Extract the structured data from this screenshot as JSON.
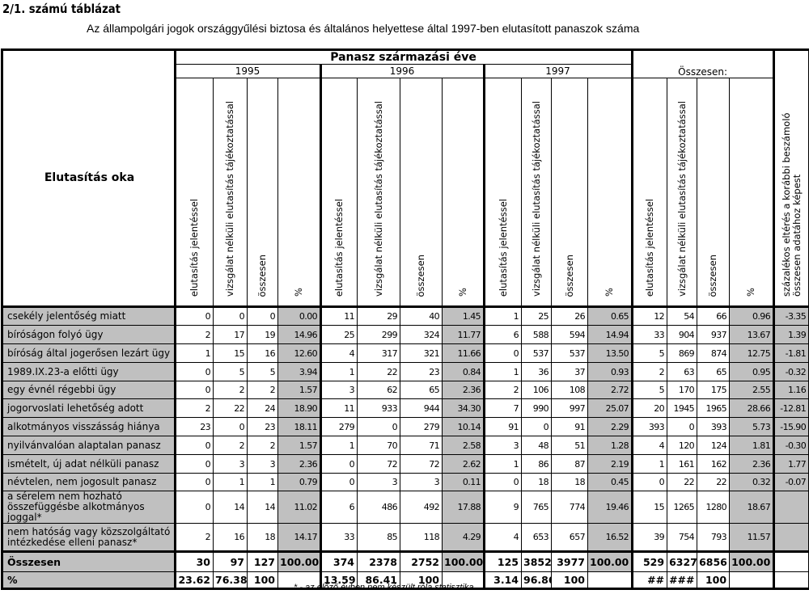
{
  "heading": "2/1. számú táblázat",
  "title": "Az állampolgári jogok országgyűlési biztosa és általános helyettese által 1997-ben elutasított panaszok száma",
  "header": {
    "row_label": "Elutasítás oka",
    "group": "Panasz származási éve",
    "years": [
      "1995",
      "1996",
      "1997"
    ],
    "total": "Összesen:",
    "subcols": [
      "elutasítás jelentéssel",
      "vizsgálat nélküli elutasítás tájékoztatással",
      "összesen",
      "%"
    ],
    "last": "százalékos eltérés a korábbi beszámoló összesen adatához képest"
  },
  "rows": [
    {
      "label": "csekély jelentőség miatt",
      "v": [
        "0",
        "0",
        "0",
        "0.00",
        "11",
        "29",
        "40",
        "1.45",
        "1",
        "25",
        "26",
        "0.65",
        "12",
        "54",
        "66",
        "0.96",
        "-3.35"
      ]
    },
    {
      "label": "bíróságon folyó ügy",
      "v": [
        "2",
        "17",
        "19",
        "14.96",
        "25",
        "299",
        "324",
        "11.77",
        "6",
        "588",
        "594",
        "14.94",
        "33",
        "904",
        "937",
        "13.67",
        "1.39"
      ]
    },
    {
      "label": "bíróság által jogerősen lezárt ügy",
      "v": [
        "1",
        "15",
        "16",
        "12.60",
        "4",
        "317",
        "321",
        "11.66",
        "0",
        "537",
        "537",
        "13.50",
        "5",
        "869",
        "874",
        "12.75",
        "-1.81"
      ]
    },
    {
      "label": "1989.IX.23-a előtti ügy",
      "v": [
        "0",
        "5",
        "5",
        "3.94",
        "1",
        "22",
        "23",
        "0.84",
        "1",
        "36",
        "37",
        "0.93",
        "2",
        "63",
        "65",
        "0.95",
        "-0.32"
      ]
    },
    {
      "label": "egy évnél régebbi ügy",
      "v": [
        "0",
        "2",
        "2",
        "1.57",
        "3",
        "62",
        "65",
        "2.36",
        "2",
        "106",
        "108",
        "2.72",
        "5",
        "170",
        "175",
        "2.55",
        "1.16"
      ]
    },
    {
      "label": "jogorvoslati lehetőség adott",
      "v": [
        "2",
        "22",
        "24",
        "18.90",
        "11",
        "933",
        "944",
        "34.30",
        "7",
        "990",
        "997",
        "25.07",
        "20",
        "1945",
        "1965",
        "28.66",
        "-12.81"
      ]
    },
    {
      "label": "alkotmányos visszásság hiánya",
      "v": [
        "23",
        "0",
        "23",
        "18.11",
        "279",
        "0",
        "279",
        "10.14",
        "91",
        "0",
        "91",
        "2.29",
        "393",
        "0",
        "393",
        "5.73",
        "-15.90"
      ]
    },
    {
      "label": "nyilvánvalóan alaptalan panasz",
      "v": [
        "0",
        "2",
        "2",
        "1.57",
        "1",
        "70",
        "71",
        "2.58",
        "3",
        "48",
        "51",
        "1.28",
        "4",
        "120",
        "124",
        "1.81",
        "-0.30"
      ]
    },
    {
      "label": "ismételt, új adat nélküli panasz",
      "v": [
        "0",
        "3",
        "3",
        "2.36",
        "0",
        "72",
        "72",
        "2.62",
        "1",
        "86",
        "87",
        "2.19",
        "1",
        "161",
        "162",
        "2.36",
        "1.77"
      ]
    },
    {
      "label": "névtelen, nem jogosult panasz",
      "v": [
        "0",
        "1",
        "1",
        "0.79",
        "0",
        "3",
        "3",
        "0.11",
        "0",
        "18",
        "18",
        "0.45",
        "0",
        "22",
        "22",
        "0.32",
        "-0.07"
      ]
    },
    {
      "label": "a sérelem nem hozható összefüggésbe alkotmányos joggal*",
      "v": [
        "0",
        "14",
        "14",
        "11.02",
        "6",
        "486",
        "492",
        "17.88",
        "9",
        "765",
        "774",
        "19.46",
        "15",
        "1265",
        "1280",
        "18.67",
        ""
      ]
    },
    {
      "label": "nem hatóság vagy közszolgáltató intézkedése elleni panasz*",
      "v": [
        "2",
        "16",
        "18",
        "14.17",
        "33",
        "85",
        "118",
        "4.29",
        "4",
        "653",
        "657",
        "16.52",
        "39",
        "754",
        "793",
        "11.57",
        ""
      ]
    }
  ],
  "totals": {
    "label": "Összesen",
    "v": [
      "30",
      "97",
      "127",
      "100.00",
      "374",
      "2378",
      "2752",
      "100.00",
      "125",
      "3852",
      "3977",
      "100.00",
      "529",
      "6327",
      "6856",
      "100.00",
      ""
    ]
  },
  "percent": {
    "label": "%",
    "v": [
      "23.62",
      "76.38",
      "100",
      "",
      "13.59",
      "86.41",
      "100",
      "",
      "3.14",
      "96.86",
      "100",
      "",
      "##",
      "###",
      "100",
      "",
      ""
    ]
  },
  "footnote": "* - az előző évben nem készült róla statisztika"
}
